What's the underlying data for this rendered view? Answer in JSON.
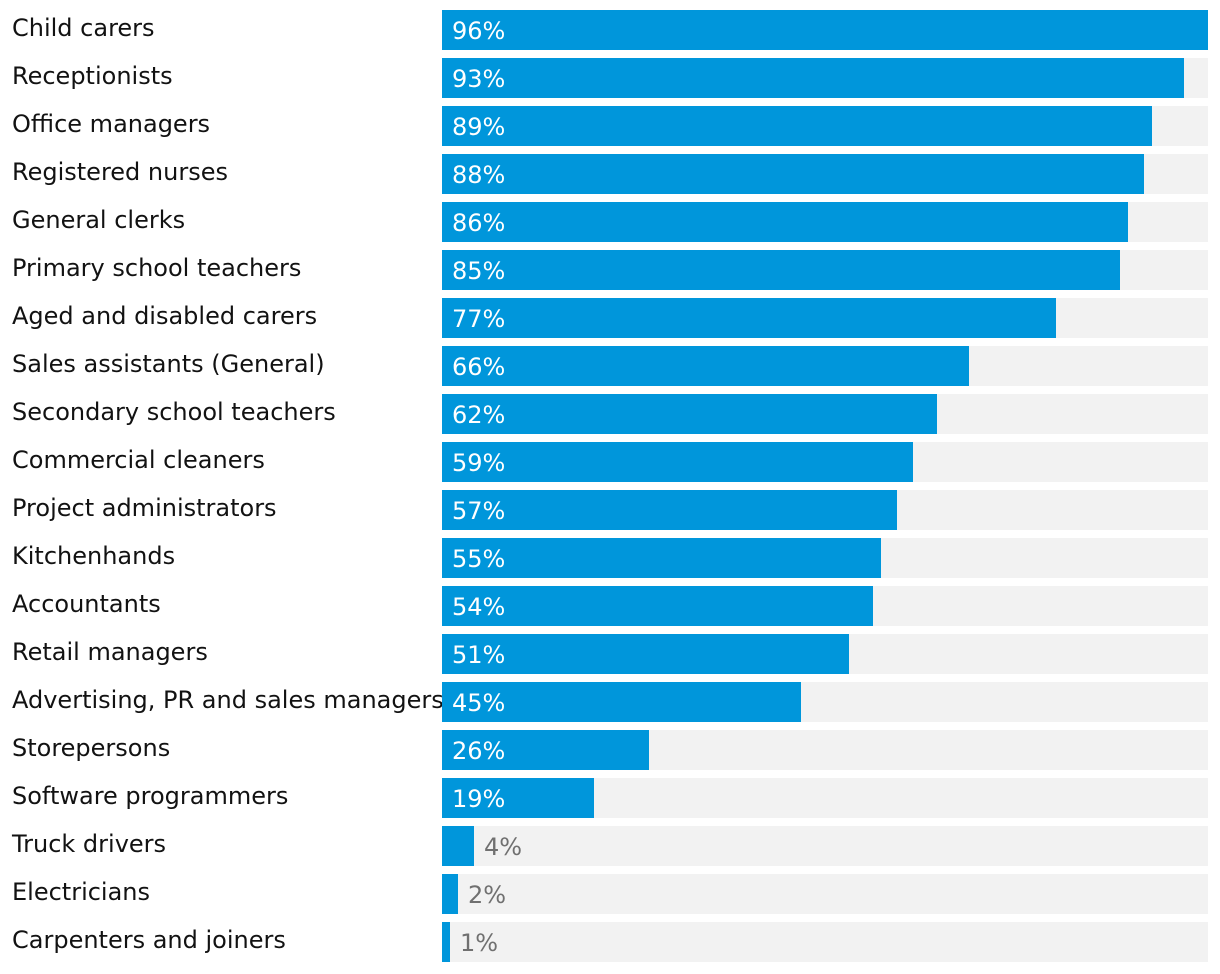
{
  "chart_data": {
    "type": "bar",
    "orientation": "horizontal",
    "title": "",
    "xlabel": "",
    "ylabel": "",
    "xlim": [
      0,
      96
    ],
    "categories": [
      "Child carers",
      "Receptionists",
      "Office managers",
      "Registered nurses",
      "General clerks",
      "Primary school teachers",
      "Aged and disabled carers",
      "Sales assistants (General)",
      "Secondary school teachers",
      "Commercial cleaners",
      "Project administrators",
      "Kitchenhands",
      "Accountants",
      "Retail managers",
      "Advertising, PR and sales managers",
      "Storepersons",
      "Software programmers",
      "Truck drivers",
      "Electricians",
      "Carpenters and joiners"
    ],
    "values": [
      96,
      93,
      89,
      88,
      86,
      85,
      77,
      66,
      62,
      59,
      57,
      55,
      54,
      51,
      45,
      26,
      19,
      4,
      2,
      1
    ],
    "value_labels": [
      "96%",
      "93%",
      "89%",
      "88%",
      "86%",
      "85%",
      "77%",
      "66%",
      "62%",
      "59%",
      "57%",
      "55%",
      "54%",
      "51%",
      "45%",
      "26%",
      "19%",
      "4%",
      "2%",
      "1%"
    ],
    "colors": {
      "bar": "#0096db",
      "track": "#f2f2f2",
      "label_inside": "#ffffff",
      "label_outside": "#707070",
      "category_text": "#121212"
    }
  }
}
